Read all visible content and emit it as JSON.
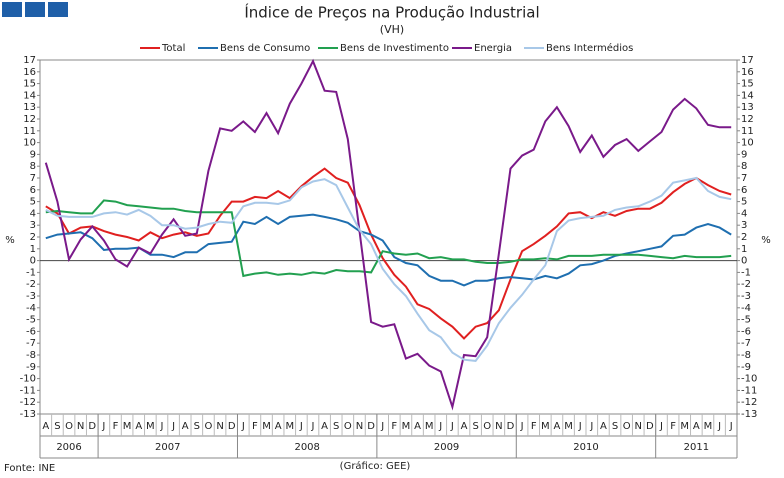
{
  "chart_data": {
    "type": "line",
    "title": "Índice de Preços na Produção Industrial",
    "subtitle": "(VH)",
    "y_label": "%",
    "source": "Fonte: INE",
    "credit": "(Gráfico: GEE)",
    "categories": [
      "A",
      "S",
      "O",
      "N",
      "D",
      "J",
      "F",
      "M",
      "A",
      "M",
      "J",
      "J",
      "A",
      "S",
      "O",
      "N",
      "D",
      "J",
      "F",
      "M",
      "A",
      "M",
      "J",
      "J",
      "A",
      "S",
      "O",
      "N",
      "D",
      "J",
      "F",
      "M",
      "A",
      "M",
      "J",
      "J",
      "A",
      "S",
      "O",
      "N",
      "D",
      "J",
      "F",
      "M",
      "A",
      "M",
      "J",
      "J",
      "A",
      "S",
      "O",
      "N",
      "D",
      "J",
      "F",
      "M",
      "A",
      "M",
      "J",
      "J"
    ],
    "years": [
      "2006",
      "2007",
      "2008",
      "2009",
      "2010",
      "2011"
    ],
    "ylim": [
      -13,
      17
    ],
    "yticks": [
      -13,
      -12,
      -11,
      -10,
      -9,
      -8,
      -7,
      -6,
      -5,
      -4,
      -3,
      -2,
      -1,
      0,
      1,
      2,
      3,
      4,
      5,
      6,
      7,
      8,
      9,
      10,
      11,
      12,
      13,
      14,
      15,
      16,
      17
    ],
    "series": [
      {
        "name": "Total",
        "color": "#e02020",
        "values": [
          4.6,
          4.0,
          2.3,
          2.8,
          2.9,
          2.5,
          2.2,
          2.0,
          1.7,
          2.4,
          1.9,
          2.2,
          2.4,
          2.1,
          2.3,
          3.8,
          5.0,
          5.0,
          5.4,
          5.3,
          5.9,
          5.3,
          6.3,
          7.1,
          7.8,
          7.0,
          6.6,
          4.7,
          2.2,
          0.2,
          -1.2,
          -2.2,
          -3.7,
          -4.1,
          -4.9,
          -5.6,
          -6.6,
          -5.6,
          -5.3,
          -4.2,
          -1.6,
          0.8,
          1.4,
          2.1,
          2.9,
          4.0,
          4.1,
          3.6,
          4.1,
          3.8,
          4.2,
          4.4,
          4.4,
          4.9,
          5.8,
          6.5,
          7.0,
          6.4,
          5.9,
          5.6
        ]
      },
      {
        "name": "Bens de Consumo",
        "color": "#1f6fb0",
        "values": [
          1.9,
          2.2,
          2.3,
          2.4,
          1.9,
          0.9,
          1.0,
          1.0,
          1.1,
          0.5,
          0.5,
          0.3,
          0.7,
          0.7,
          1.4,
          1.5,
          1.6,
          3.3,
          3.1,
          3.7,
          3.1,
          3.7,
          3.8,
          3.9,
          3.7,
          3.5,
          3.2,
          2.5,
          2.2,
          1.7,
          0.3,
          -0.2,
          -0.4,
          -1.3,
          -1.7,
          -1.7,
          -2.1,
          -1.7,
          -1.7,
          -1.5,
          -1.4,
          -1.5,
          -1.6,
          -1.3,
          -1.5,
          -1.1,
          -0.4,
          -0.3,
          0.0,
          0.4,
          0.6,
          0.8,
          1.0,
          1.2,
          2.1,
          2.2,
          2.8,
          3.1,
          2.8,
          2.2
        ]
      },
      {
        "name": "Bens de Investimento",
        "color": "#22a050",
        "values": [
          4.1,
          4.2,
          4.1,
          4.0,
          4.0,
          5.1,
          5.0,
          4.7,
          4.6,
          4.5,
          4.4,
          4.4,
          4.2,
          4.1,
          4.1,
          4.1,
          4.1,
          -1.3,
          -1.1,
          -1.0,
          -1.2,
          -1.1,
          -1.2,
          -1.0,
          -1.1,
          -0.8,
          -0.9,
          -0.9,
          -1.0,
          0.8,
          0.6,
          0.5,
          0.6,
          0.2,
          0.3,
          0.1,
          0.1,
          -0.1,
          -0.2,
          -0.2,
          -0.1,
          0.1,
          0.1,
          0.2,
          0.1,
          0.4,
          0.4,
          0.4,
          0.5,
          0.5,
          0.5,
          0.5,
          0.4,
          0.3,
          0.2,
          0.4,
          0.3,
          0.3,
          0.3,
          0.4
        ]
      },
      {
        "name": "Energia",
        "color": "#7a1a8a",
        "values": [
          8.3,
          5.0,
          0.1,
          1.8,
          2.9,
          1.7,
          0.1,
          -0.5,
          1.1,
          0.6,
          2.2,
          3.5,
          2.1,
          2.3,
          7.6,
          11.2,
          11.0,
          11.8,
          10.9,
          12.5,
          10.8,
          13.3,
          15.0,
          16.9,
          14.4,
          14.3,
          10.3,
          2.5,
          -5.2,
          -5.6,
          -5.4,
          -8.3,
          -7.9,
          -8.9,
          -9.4,
          -12.4,
          -8.0,
          -8.1,
          -6.5,
          0.6,
          7.8,
          8.9,
          9.4,
          11.8,
          13.0,
          11.4,
          9.2,
          10.6,
          8.8,
          9.8,
          10.3,
          9.3,
          10.1,
          10.9,
          12.8,
          13.7,
          12.9,
          11.5,
          11.3,
          11.3
        ]
      },
      {
        "name": "Bens Intermédios",
        "color": "#a8c8e8",
        "values": [
          4.3,
          3.8,
          3.7,
          3.7,
          3.7,
          4.0,
          4.1,
          3.9,
          4.3,
          3.8,
          3.0,
          3.0,
          2.7,
          2.8,
          3.1,
          3.3,
          3.2,
          4.6,
          4.9,
          4.9,
          4.8,
          5.1,
          6.2,
          6.7,
          6.9,
          6.4,
          4.5,
          2.6,
          1.4,
          -0.7,
          -2.0,
          -3.0,
          -4.5,
          -5.9,
          -6.5,
          -7.8,
          -8.4,
          -8.5,
          -7.2,
          -5.3,
          -4.0,
          -2.9,
          -1.6,
          -0.4,
          2.5,
          3.4,
          3.6,
          3.7,
          3.8,
          4.3,
          4.5,
          4.6,
          5.0,
          5.5,
          6.6,
          6.8,
          7.0,
          5.9,
          5.4,
          5.2
        ]
      }
    ]
  }
}
